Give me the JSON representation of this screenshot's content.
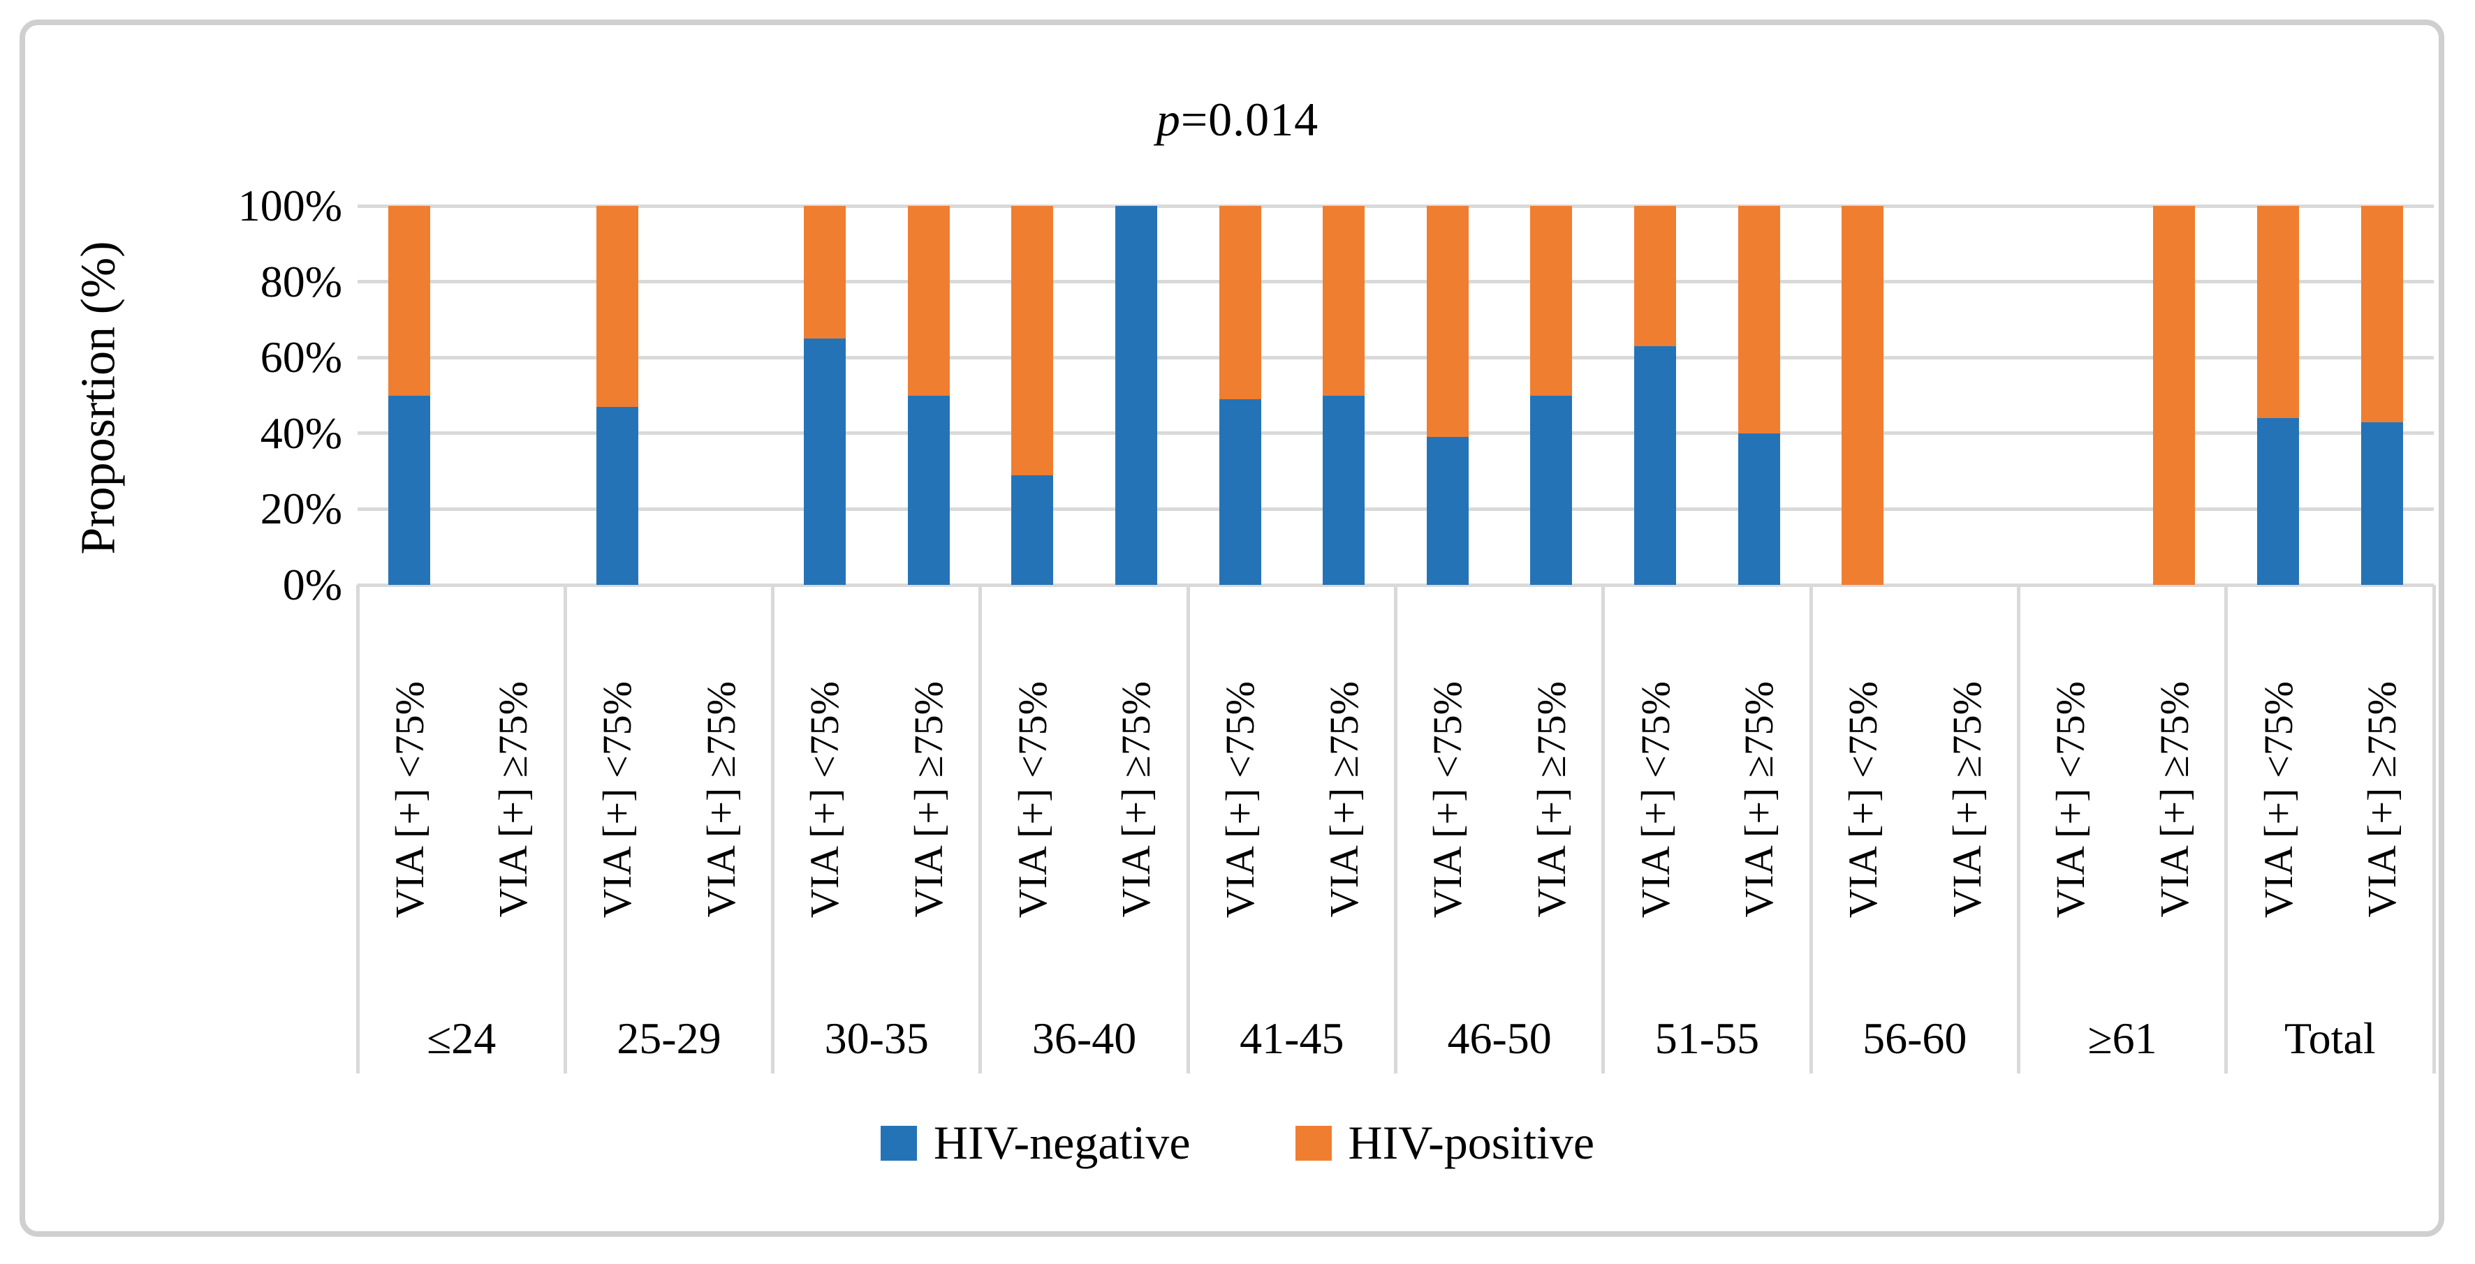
{
  "figure": {
    "title": {
      "prefix_italic": "p",
      "rest": "=0.014"
    },
    "y_axis": {
      "label": "Proposrtion (%)",
      "ticks": [
        "100%",
        "80%",
        "60%",
        "40%",
        "20%",
        "0%"
      ]
    },
    "legend": {
      "items": [
        {
          "label": "HIV-negative",
          "color": "#2573b7"
        },
        {
          "label": "HIV-positive",
          "color": "#f07e31"
        }
      ]
    },
    "colors": {
      "gridline": "#d9d9d9",
      "frame_border": "#cfcfcf",
      "hiv_negative": "#2573b7",
      "hiv_positive": "#f07e31"
    }
  },
  "chart_data": {
    "type": "bar",
    "stacked_100_percent": true,
    "title": "p=0.014",
    "ylabel": "Proposrtion (%)",
    "ylim": [
      0,
      100
    ],
    "grid": true,
    "legend_position": "bottom",
    "categories": [
      "≤24",
      "25-29",
      "30-35",
      "36-40",
      "41-45",
      "46-50",
      "51-55",
      "56-60",
      "≥61",
      "Total"
    ],
    "sub_categories": [
      "VIA [+] <75%",
      "VIA [+] ≥75%"
    ],
    "series": [
      {
        "name": "HIV-negative",
        "color": "#2573b7",
        "values": [
          [
            50,
            null
          ],
          [
            47,
            null
          ],
          [
            65,
            50
          ],
          [
            29,
            100
          ],
          [
            49,
            50
          ],
          [
            39,
            50
          ],
          [
            63,
            40
          ],
          [
            0,
            null
          ],
          [
            null,
            0
          ],
          [
            44,
            43
          ]
        ]
      },
      {
        "name": "HIV-positive",
        "color": "#f07e31",
        "values": [
          [
            50,
            null
          ],
          [
            53,
            null
          ],
          [
            35,
            50
          ],
          [
            71,
            0
          ],
          [
            51,
            50
          ],
          [
            61,
            50
          ],
          [
            37,
            60
          ],
          [
            100,
            null
          ],
          [
            null,
            100
          ],
          [
            56,
            57
          ]
        ]
      }
    ]
  }
}
